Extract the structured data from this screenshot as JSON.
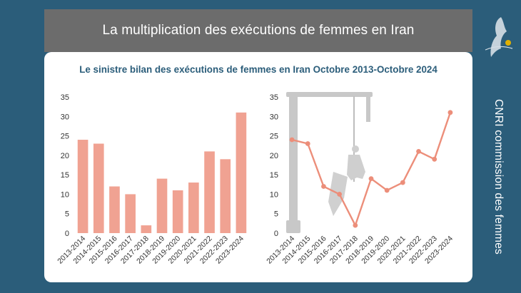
{
  "banner": {
    "title": "La multiplication des exécutions de femmes en Iran"
  },
  "card": {
    "subtitle": "Le sinistre bilan des exécutions de femmes en Iran Octobre 2013-Octobre 2024"
  },
  "sidebar": {
    "vertical_label": "CNRI commission des femmes",
    "logo_icon": "women-silhouette-logo-icon"
  },
  "colors": {
    "background": "#2b5d7a",
    "banner": "#6c6c6c",
    "bar": "#f0a292",
    "line": "#ec8e7a",
    "subtitle": "#2b5d7a"
  },
  "chart_data": [
    {
      "type": "bar",
      "categories": [
        "2013-2014",
        "2014-2015",
        "2015-2016",
        "2016-2017",
        "2017-2018",
        "2018-2019",
        "2019-2020",
        "2020-2021",
        "2021-2022",
        "2022-2023",
        "2023-2024"
      ],
      "values": [
        24,
        23,
        12,
        10,
        2,
        14,
        11,
        13,
        21,
        19,
        31
      ],
      "ylim": [
        0,
        35
      ],
      "yticks": [
        0,
        5,
        10,
        15,
        20,
        25,
        30,
        35
      ],
      "grid": false
    },
    {
      "type": "line",
      "categories": [
        "2013-2014",
        "2014-2015",
        "2015-2016",
        "2016-2017",
        "2017-2018",
        "2018-2019",
        "2019-2020",
        "2020-2021",
        "2021-2022",
        "2022-2023",
        "2023-2024"
      ],
      "values": [
        24,
        23,
        12,
        10,
        2,
        14,
        11,
        13,
        21,
        19,
        31
      ],
      "ylim": [
        0,
        35
      ],
      "yticks": [
        0,
        5,
        10,
        15,
        20,
        25,
        30,
        35
      ],
      "grid": false,
      "background_illustration": "gallows-silhouette-icon"
    }
  ]
}
